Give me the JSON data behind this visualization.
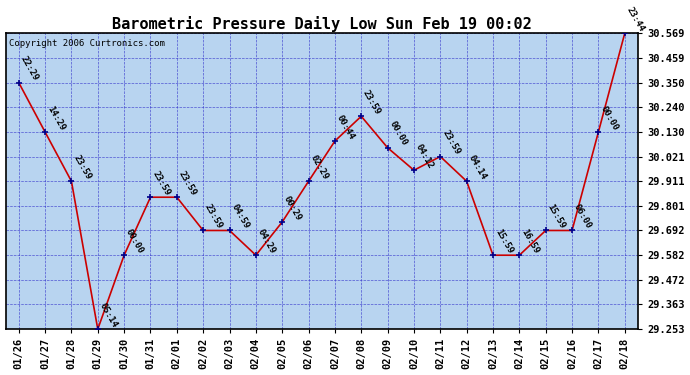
{
  "title": "Barometric Pressure Daily Low Sun Feb 19 00:02",
  "copyright": "Copyright 2006 Curtronics.com",
  "x_labels": [
    "01/26",
    "01/27",
    "01/28",
    "01/29",
    "01/30",
    "01/31",
    "02/01",
    "02/02",
    "02/03",
    "02/04",
    "02/05",
    "02/06",
    "02/07",
    "02/08",
    "02/09",
    "02/10",
    "02/11",
    "02/12",
    "02/13",
    "02/14",
    "02/15",
    "02/16",
    "02/17",
    "02/18"
  ],
  "y_values": [
    30.35,
    30.13,
    29.911,
    29.253,
    29.582,
    29.84,
    29.84,
    29.692,
    29.692,
    29.582,
    29.73,
    29.911,
    30.09,
    30.2,
    30.06,
    29.96,
    30.021,
    29.911,
    29.582,
    29.582,
    29.692,
    29.692,
    30.13,
    30.569
  ],
  "point_labels": [
    "22:29",
    "14:29",
    "23:59",
    "05:14",
    "00:00",
    "23:59",
    "23:59",
    "23:59",
    "04:59",
    "04:29",
    "00:29",
    "02:29",
    "00:44",
    "23:59",
    "00:00",
    "04:12",
    "23:59",
    "04:14",
    "15:59",
    "16:59",
    "15:59",
    "06:00",
    "00:00",
    "23:44"
  ],
  "ylim_min": 29.253,
  "ylim_max": 30.569,
  "yticks": [
    29.253,
    29.363,
    29.472,
    29.582,
    29.692,
    29.801,
    29.911,
    30.021,
    30.13,
    30.24,
    30.35,
    30.459,
    30.569
  ],
  "bg_color": "#b8d4f0",
  "line_color": "#cc0000",
  "marker_color": "#00008b",
  "grid_color": "#3333cc",
  "title_fontsize": 11,
  "tick_fontsize": 7.5,
  "label_fontsize": 6.5,
  "fig_width": 6.9,
  "fig_height": 3.75
}
